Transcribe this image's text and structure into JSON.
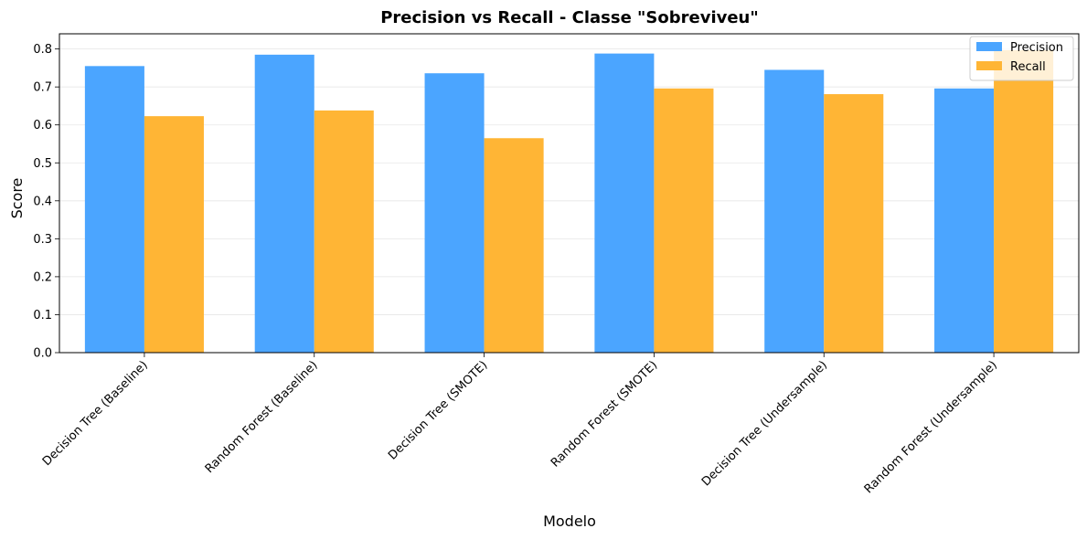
{
  "chart_data": {
    "type": "bar",
    "title": "Precision vs Recall - Classe \"Sobreviveu\"",
    "xlabel": "Modelo",
    "ylabel": "Score",
    "categories": [
      "Decision Tree (Baseline)",
      "Random Forest (Baseline)",
      "Decision Tree (SMOTE)",
      "Random Forest (SMOTE)",
      "Decision Tree (Undersample)",
      "Random Forest (Undersample)"
    ],
    "series": [
      {
        "name": "Precision",
        "color": "#4ba5ff",
        "values": [
          0.755,
          0.785,
          0.736,
          0.788,
          0.745,
          0.696
        ]
      },
      {
        "name": "Recall",
        "color": "#ffb535",
        "values": [
          0.623,
          0.638,
          0.565,
          0.696,
          0.681,
          0.797
        ]
      }
    ],
    "ylim": [
      0.0,
      0.84
    ],
    "yticks": [
      "0.0",
      "0.1",
      "0.2",
      "0.3",
      "0.4",
      "0.5",
      "0.6",
      "0.7",
      "0.8"
    ],
    "grid": "y-axis, light",
    "legend_position": "top-right"
  }
}
